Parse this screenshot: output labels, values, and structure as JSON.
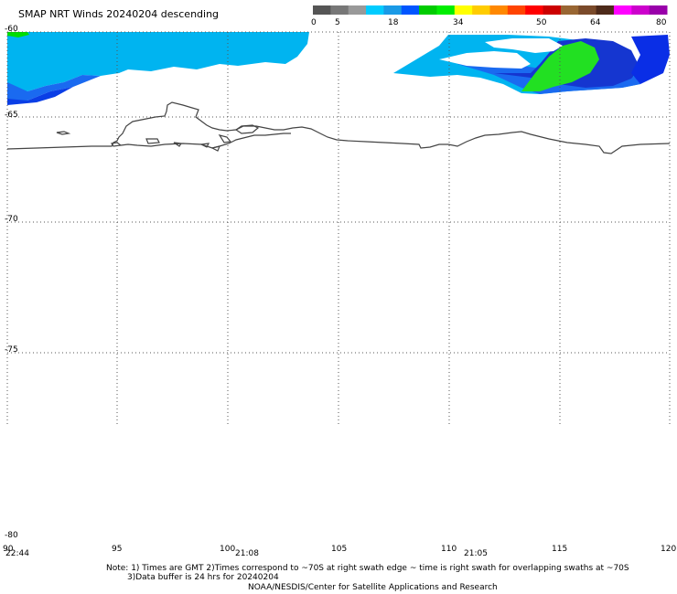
{
  "header": {
    "title": "SMAP NRT Winds  20240204 descending"
  },
  "colorbar": {
    "labels": [
      "0",
      "5",
      "18",
      "34",
      "50",
      "64",
      "80"
    ],
    "colors": [
      "#555555",
      "#777777",
      "#999999",
      "#00ccff",
      "#1a9ae6",
      "#0055ff",
      "#00cc00",
      "#00ee00",
      "#ffff00",
      "#ffcc00",
      "#ff8800",
      "#ff4400",
      "#ff0000",
      "#cc0000",
      "#996633",
      "#7a4a2a",
      "#4d2a1a",
      "#ff00ff",
      "#cc00cc",
      "#9900aa"
    ]
  },
  "axes": {
    "lat_labels": [
      "-60",
      "-65",
      "-70",
      "-75",
      "-80"
    ],
    "lon_labels": [
      "90",
      "95",
      "100",
      "105",
      "110",
      "115",
      "120"
    ],
    "time_labels": [
      "22:44",
      "21:08",
      "21:05"
    ]
  },
  "notes": {
    "line1": "Note: 1) Times are GMT 2)Times correspond to ~70S at right swath edge ~ time is right swath for overlapping swaths at ~70S",
    "line2": "3)Data buffer is 24 hrs for 20240204",
    "line3": "NOAA/NESDIS/Center for Satellite Applications and Research"
  }
}
